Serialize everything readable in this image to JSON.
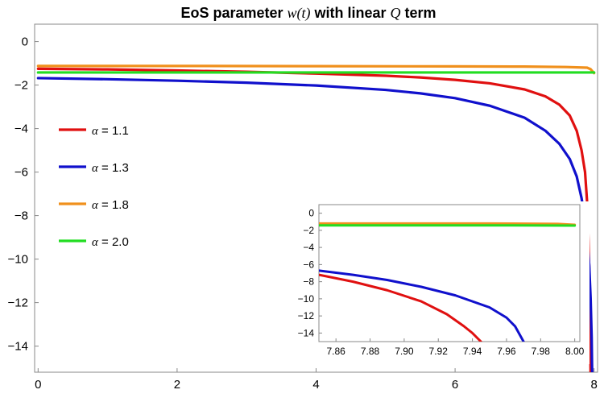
{
  "chart_data": {
    "type": "line",
    "title": {
      "prefix": "EoS parameter ",
      "math": "w(t)",
      "middle": " with linear ",
      "math2": "Q",
      "suffix": " term"
    },
    "xlabel": "",
    "ylabel": "",
    "xlim": [
      -0.05,
      8.05
    ],
    "ylim": [
      -15.2,
      0.8
    ],
    "x_ticks": [
      0,
      2,
      4,
      6,
      8
    ],
    "y_ticks": [
      0,
      -2,
      -4,
      -6,
      -8,
      -10,
      -12,
      -14
    ],
    "x_tick_labels": [
      "0",
      "2",
      "4",
      "6",
      "8"
    ],
    "y_tick_labels": [
      "0",
      "−2",
      "−4",
      "−6",
      "−8",
      "−10",
      "−12",
      "−14"
    ],
    "legend_position": "left",
    "series": [
      {
        "name": "α = 1.1",
        "legend_symbol": "α",
        "legend_value": "= 1.1",
        "color": "#e01010",
        "points": [
          [
            0,
            -1.25
          ],
          [
            1,
            -1.28
          ],
          [
            2,
            -1.33
          ],
          [
            3,
            -1.39
          ],
          [
            4,
            -1.47
          ],
          [
            5,
            -1.57
          ],
          [
            5.5,
            -1.65
          ],
          [
            6,
            -1.76
          ],
          [
            6.5,
            -1.92
          ],
          [
            7,
            -2.2
          ],
          [
            7.3,
            -2.52
          ],
          [
            7.5,
            -2.9
          ],
          [
            7.65,
            -3.4
          ],
          [
            7.75,
            -4.1
          ],
          [
            7.82,
            -5.0
          ],
          [
            7.87,
            -6.0
          ],
          [
            7.9,
            -7.4
          ],
          [
            7.92,
            -9.2
          ],
          [
            7.93,
            -10.5
          ],
          [
            7.94,
            -12.3
          ],
          [
            7.945,
            -13.8
          ],
          [
            7.95,
            -15.3
          ]
        ]
      },
      {
        "name": "α = 1.3",
        "legend_symbol": "α",
        "legend_value": "= 1.3",
        "color": "#1010cc",
        "points": [
          [
            0,
            -1.68
          ],
          [
            1,
            -1.73
          ],
          [
            2,
            -1.8
          ],
          [
            3,
            -1.89
          ],
          [
            4,
            -2.02
          ],
          [
            5,
            -2.22
          ],
          [
            5.5,
            -2.38
          ],
          [
            6,
            -2.6
          ],
          [
            6.5,
            -2.95
          ],
          [
            7,
            -3.5
          ],
          [
            7.3,
            -4.1
          ],
          [
            7.5,
            -4.7
          ],
          [
            7.65,
            -5.4
          ],
          [
            7.75,
            -6.2
          ],
          [
            7.82,
            -7.2
          ],
          [
            7.87,
            -8.2
          ],
          [
            7.9,
            -8.9
          ],
          [
            7.93,
            -10.3
          ],
          [
            7.95,
            -11.8
          ],
          [
            7.965,
            -13.6
          ],
          [
            7.97,
            -14.8
          ],
          [
            7.973,
            -15.3
          ]
        ]
      },
      {
        "name": "α = 1.8",
        "legend_symbol": "α",
        "legend_value": "= 1.8",
        "color": "#f0901c",
        "points": [
          [
            0,
            -1.12
          ],
          [
            2,
            -1.12
          ],
          [
            4,
            -1.13
          ],
          [
            6,
            -1.14
          ],
          [
            7,
            -1.15
          ],
          [
            7.6,
            -1.17
          ],
          [
            7.9,
            -1.2
          ],
          [
            7.95,
            -1.27
          ],
          [
            7.98,
            -1.38
          ],
          [
            8.0,
            -1.45
          ]
        ]
      },
      {
        "name": "α = 2.0",
        "legend_symbol": "α",
        "legend_value": "= 2.0",
        "color": "#22dd22",
        "points": [
          [
            0,
            -1.42
          ],
          [
            2,
            -1.42
          ],
          [
            4,
            -1.42
          ],
          [
            6,
            -1.42
          ],
          [
            7,
            -1.42
          ],
          [
            7.8,
            -1.42
          ],
          [
            8.0,
            -1.42
          ]
        ]
      }
    ],
    "inset": {
      "xlim": [
        7.85,
        8.003
      ],
      "ylim": [
        -15,
        1
      ],
      "x_ticks": [
        7.86,
        7.88,
        7.9,
        7.92,
        7.94,
        7.96,
        7.98,
        8.0
      ],
      "y_ticks": [
        0,
        -2,
        -4,
        -6,
        -8,
        -10,
        -12,
        -14
      ],
      "x_tick_labels": [
        "7.86",
        "7.88",
        "7.90",
        "7.92",
        "7.94",
        "7.96",
        "7.98",
        "8.00"
      ],
      "y_tick_labels": [
        "0",
        "−2",
        "−4",
        "−6",
        "−8",
        "−10",
        "−12",
        "−14"
      ],
      "series": [
        {
          "name": "α = 1.1",
          "color": "#e01010",
          "points": [
            [
              7.85,
              -7.2
            ],
            [
              7.87,
              -8.0
            ],
            [
              7.89,
              -9.0
            ],
            [
              7.91,
              -10.3
            ],
            [
              7.925,
              -11.8
            ],
            [
              7.935,
              -13.2
            ],
            [
              7.94,
              -14.0
            ],
            [
              7.945,
              -15.0
            ]
          ]
        },
        {
          "name": "α = 1.3",
          "color": "#1010cc",
          "points": [
            [
              7.85,
              -6.7
            ],
            [
              7.87,
              -7.2
            ],
            [
              7.89,
              -7.8
            ],
            [
              7.91,
              -8.6
            ],
            [
              7.93,
              -9.6
            ],
            [
              7.95,
              -11.0
            ],
            [
              7.96,
              -12.2
            ],
            [
              7.965,
              -13.2
            ],
            [
              7.97,
              -15.0
            ]
          ]
        },
        {
          "name": "α = 1.8",
          "color": "#f0901c",
          "points": [
            [
              7.85,
              -1.2
            ],
            [
              7.9,
              -1.2
            ],
            [
              7.95,
              -1.2
            ],
            [
              7.99,
              -1.25
            ],
            [
              8.0,
              -1.35
            ]
          ]
        },
        {
          "name": "α = 2.0",
          "color": "#22dd22",
          "points": [
            [
              7.85,
              -1.42
            ],
            [
              7.9,
              -1.42
            ],
            [
              7.95,
              -1.42
            ],
            [
              8.0,
              -1.45
            ]
          ]
        }
      ]
    }
  }
}
